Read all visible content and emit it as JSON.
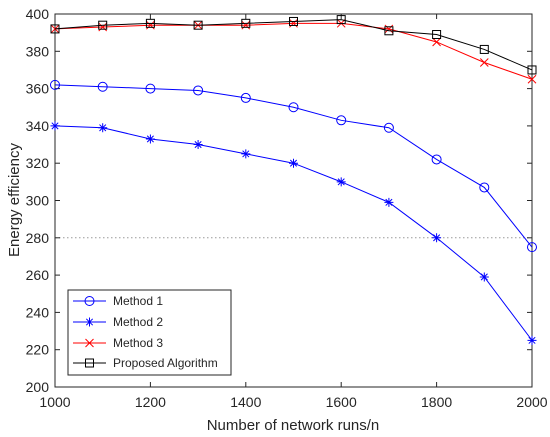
{
  "chart_data": {
    "type": "line",
    "title": "",
    "xlabel": "Number of network runs/n",
    "ylabel": "Energy efficiency",
    "xlim": [
      1000,
      2000
    ],
    "ylim": [
      200,
      400
    ],
    "xticks": [
      1000,
      1200,
      1400,
      1600,
      1800,
      2000
    ],
    "yticks": [
      200,
      220,
      240,
      260,
      280,
      300,
      320,
      340,
      360,
      380,
      400
    ],
    "x": [
      1000,
      1100,
      1200,
      1300,
      1400,
      1500,
      1600,
      1700,
      1800,
      1900,
      2000
    ],
    "reference_line": {
      "y": 280,
      "style": "dotted",
      "color": "#9a9a9a"
    },
    "legend_position": "bottom-left",
    "grid": false,
    "series": [
      {
        "name": "Method 1",
        "color": "#0000ff",
        "marker": "circle",
        "values": [
          362,
          361,
          360,
          359,
          355,
          350,
          343,
          339,
          322,
          307,
          275
        ]
      },
      {
        "name": "Method 2",
        "color": "#0000ff",
        "marker": "asterisk",
        "values": [
          340,
          339,
          333,
          330,
          325,
          320,
          310,
          299,
          280,
          259,
          225
        ]
      },
      {
        "name": "Method 3",
        "color": "#ff0000",
        "marker": "x",
        "values": [
          392,
          393,
          394,
          394,
          394,
          395,
          395,
          392,
          385,
          374,
          365
        ]
      },
      {
        "name": "Proposed Algorithm",
        "color": "#000000",
        "marker": "square",
        "values": [
          392,
          394,
          395,
          394,
          395,
          396,
          397,
          391,
          389,
          381,
          370
        ]
      }
    ]
  }
}
